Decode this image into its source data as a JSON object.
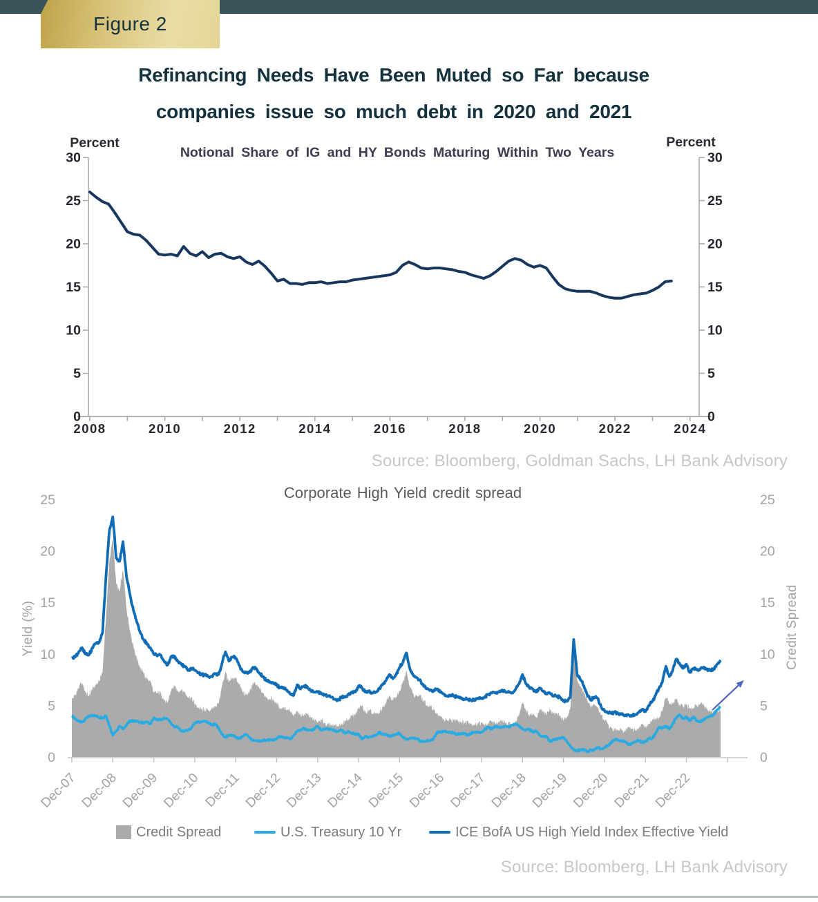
{
  "header": {
    "figure_label": "Figure 2",
    "title_line1": "Refinancing Needs Have Been Muted so Far because",
    "title_line2": "companies issue so much debt in 2020 and 2021",
    "bar_color": "#3a545b",
    "label_gold_dark": "#bfa349",
    "label_gold_light": "#e9dda6",
    "title_color": "#14323e"
  },
  "chart_data": [
    {
      "type": "line",
      "title": "Notional Share of IG and HY Bonds Maturing Within Two Years",
      "ylabel_left": "Percent",
      "ylabel_right": "Percent",
      "source": "Source: Bloomberg, Goldman Sachs, LH Bank Advisory",
      "ylim": [
        0,
        30
      ],
      "yticks": [
        0,
        5,
        10,
        15,
        20,
        25,
        30
      ],
      "xtick_years_labeled": [
        2008,
        2010,
        2012,
        2014,
        2016,
        2018,
        2020,
        2022,
        2024
      ],
      "xtick_minor_start": 2008,
      "xtick_minor_end": 2024,
      "grid": "off",
      "series": [
        {
          "name": "Share of IG and HY bonds maturing within two years",
          "color": "#17375e",
          "x_start": 2008.0,
          "x_step": 0.1666667,
          "values": [
            26.0,
            25.4,
            24.9,
            24.6,
            23.6,
            22.5,
            21.4,
            21.1,
            21.0,
            20.4,
            19.6,
            18.8,
            18.7,
            18.8,
            18.6,
            19.7,
            18.9,
            18.6,
            19.1,
            18.4,
            18.8,
            18.9,
            18.5,
            18.3,
            18.5,
            17.9,
            17.6,
            18.0,
            17.4,
            16.6,
            15.7,
            15.9,
            15.4,
            15.4,
            15.3,
            15.5,
            15.5,
            15.6,
            15.4,
            15.5,
            15.6,
            15.6,
            15.8,
            15.9,
            16.0,
            16.1,
            16.2,
            16.3,
            16.4,
            16.7,
            17.5,
            17.9,
            17.6,
            17.2,
            17.1,
            17.2,
            17.2,
            17.1,
            17.0,
            16.8,
            16.7,
            16.4,
            16.2,
            16.0,
            16.3,
            16.8,
            17.4,
            18.0,
            18.3,
            18.1,
            17.6,
            17.3,
            17.5,
            17.2,
            16.2,
            15.3,
            14.8,
            14.6,
            14.5,
            14.5,
            14.5,
            14.3,
            14.0,
            13.8,
            13.7,
            13.7,
            13.9,
            14.1,
            14.2,
            14.3,
            14.6,
            15.0,
            15.6,
            15.7
          ]
        }
      ]
    },
    {
      "type": "area+line",
      "title": "Corporate High Yield credit spread",
      "ylabel_left": "Yield (%)",
      "ylabel_right": "Credit Spread",
      "source": "Source: Bloomberg, LH Bank Advisory",
      "ylim": [
        0,
        25
      ],
      "yticks": [
        0,
        5,
        10,
        15,
        20,
        25
      ],
      "grid": "off",
      "legend_position": "bottom",
      "x_start": 2007.9167,
      "x_step": 0.0833333,
      "xtick_labels": [
        "Dec-07",
        "Dec-08",
        "Dec-09",
        "Dec-10",
        "Dec-11",
        "Dec-12",
        "Dec-13",
        "Dec-14",
        "Dec-15",
        "Dec-16",
        "Dec-17",
        "Dec-18",
        "Dec-19",
        "Dec-20",
        "Dec-21",
        "Dec-22"
      ],
      "series": [
        {
          "name": "Credit Spread",
          "type": "area",
          "color": "#ababab",
          "values": [
            5.6,
            6.0,
            6.7,
            7.2,
            6.3,
            5.9,
            6.6,
            7.0,
            7.3,
            8.3,
            13.5,
            19.0,
            21.2,
            16.8,
            16.0,
            18.2,
            14.4,
            12.3,
            10.8,
            9.6,
            8.7,
            8.1,
            7.6,
            7.4,
            6.2,
            6.2,
            6.3,
            5.5,
            5.2,
            6.4,
            6.9,
            6.4,
            6.5,
            6.3,
            5.8,
            5.8,
            5.1,
            4.8,
            4.6,
            4.5,
            4.5,
            4.7,
            4.9,
            5.2,
            6.9,
            8.3,
            7.2,
            7.6,
            7.7,
            7.1,
            6.3,
            6.0,
            6.3,
            7.1,
            7.0,
            6.6,
            6.2,
            5.8,
            5.6,
            5.6,
            5.2,
            4.7,
            4.8,
            4.6,
            4.4,
            3.9,
            4.5,
            4.0,
            4.1,
            4.2,
            3.8,
            3.6,
            3.3,
            3.6,
            3.3,
            3.2,
            3.1,
            3.1,
            3.0,
            3.2,
            3.5,
            3.6,
            4.0,
            4.1,
            4.7,
            5.0,
            4.3,
            4.5,
            4.2,
            4.2,
            4.2,
            4.8,
            5.2,
            6.0,
            5.5,
            5.8,
            6.4,
            7.3,
            8.4,
            6.8,
            6.1,
            5.9,
            6.0,
            5.4,
            5.0,
            4.9,
            4.6,
            4.2,
            3.9,
            3.6,
            3.5,
            3.6,
            3.6,
            3.6,
            3.4,
            3.3,
            3.5,
            3.2,
            3.1,
            3.3,
            3.3,
            3.1,
            3.2,
            3.5,
            3.2,
            3.4,
            3.6,
            3.3,
            3.4,
            3.1,
            3.4,
            4.1,
            5.3,
            4.5,
            4.0,
            4.2,
            3.8,
            4.6,
            4.4,
            4.1,
            4.7,
            4.2,
            4.2,
            4.0,
            3.5,
            3.9,
            4.7,
            10.7,
            7.4,
            6.8,
            6.2,
            5.5,
            4.8,
            5.1,
            4.8,
            4.1,
            3.6,
            3.2,
            2.8,
            2.7,
            2.6,
            2.6,
            2.5,
            2.9,
            2.7,
            2.6,
            2.7,
            3.2,
            2.9,
            3.2,
            3.6,
            3.7,
            3.8,
            4.5,
            5.8,
            5.1,
            5.2,
            5.7,
            5.0,
            4.9,
            5.1,
            4.7,
            4.7,
            5.0,
            5.1,
            5.1,
            4.7,
            4.4,
            4.4,
            4.4,
            4.5
          ]
        },
        {
          "name": "U.S. Treasury 10 Yr",
          "type": "line",
          "color": "#29abe2",
          "values": [
            4.0,
            3.7,
            3.5,
            3.4,
            3.7,
            4.0,
            4.0,
            4.0,
            3.8,
            3.8,
            4.0,
            3.0,
            2.1,
            2.5,
            3.0,
            2.7,
            3.1,
            3.5,
            3.5,
            3.5,
            3.4,
            3.3,
            3.4,
            3.2,
            3.8,
            3.6,
            3.6,
            3.8,
            3.7,
            3.3,
            2.9,
            2.9,
            2.5,
            2.5,
            2.6,
            2.8,
            3.3,
            3.4,
            3.4,
            3.5,
            3.3,
            3.1,
            3.2,
            2.8,
            2.2,
            1.9,
            2.1,
            2.1,
            1.9,
            1.8,
            2.0,
            2.2,
            1.9,
            1.6,
            1.6,
            1.5,
            1.6,
            1.6,
            1.7,
            1.6,
            1.8,
            2.0,
            1.9,
            1.9,
            1.7,
            2.1,
            2.5,
            2.6,
            2.8,
            2.6,
            2.6,
            2.7,
            3.0,
            2.6,
            2.7,
            2.7,
            2.7,
            2.5,
            2.5,
            2.6,
            2.3,
            2.5,
            2.3,
            2.2,
            2.2,
            1.7,
            2.0,
            1.9,
            2.0,
            2.1,
            2.4,
            2.2,
            2.2,
            2.0,
            2.1,
            2.2,
            2.3,
            1.9,
            1.7,
            1.8,
            1.8,
            1.8,
            1.5,
            1.5,
            1.6,
            1.6,
            1.8,
            2.4,
            2.4,
            2.5,
            2.4,
            2.4,
            2.3,
            2.2,
            2.3,
            2.3,
            2.1,
            2.3,
            2.4,
            2.4,
            2.4,
            2.7,
            2.9,
            2.7,
            3.0,
            2.9,
            2.9,
            3.0,
            2.9,
            3.1,
            3.2,
            3.0,
            2.7,
            2.6,
            2.7,
            2.4,
            2.5,
            2.1,
            2.0,
            2.0,
            1.5,
            1.7,
            1.7,
            1.8,
            1.9,
            1.5,
            1.1,
            0.7,
            0.6,
            0.7,
            0.7,
            0.5,
            0.7,
            0.7,
            0.9,
            0.8,
            0.9,
            1.1,
            1.4,
            1.7,
            1.6,
            1.6,
            1.5,
            1.2,
            1.3,
            1.5,
            1.6,
            1.4,
            1.5,
            1.8,
            1.8,
            2.3,
            2.9,
            2.8,
            3.0,
            2.7,
            3.2,
            3.8,
            4.1,
            3.7,
            3.9,
            3.5,
            3.9,
            3.5,
            3.4,
            3.6,
            3.8,
            4.0,
            4.1,
            4.6,
            4.9
          ]
        },
        {
          "name": "ICE BofA US High Yield Index Effective Yield",
          "type": "line",
          "color": "#0f6cb5",
          "values": [
            9.6,
            9.7,
            10.2,
            10.6,
            10.0,
            9.9,
            10.6,
            11.0,
            11.1,
            12.1,
            17.5,
            22.0,
            23.3,
            19.3,
            19.0,
            20.9,
            17.5,
            15.8,
            14.3,
            13.1,
            12.1,
            11.4,
            11.0,
            10.6,
            10.0,
            9.8,
            9.9,
            9.3,
            8.9,
            9.7,
            9.8,
            9.3,
            9.0,
            8.8,
            8.4,
            8.6,
            8.4,
            8.2,
            8.0,
            8.0,
            7.8,
            7.8,
            8.1,
            8.0,
            9.1,
            10.2,
            9.3,
            9.7,
            9.6,
            8.9,
            8.3,
            8.2,
            8.2,
            8.7,
            8.6,
            8.1,
            7.8,
            7.4,
            7.3,
            7.2,
            7.0,
            6.7,
            6.7,
            6.5,
            6.1,
            6.0,
            7.0,
            6.6,
            6.9,
            6.8,
            6.4,
            6.3,
            6.3,
            6.2,
            6.0,
            5.9,
            5.8,
            5.6,
            5.5,
            5.8,
            5.8,
            6.1,
            6.3,
            6.3,
            6.9,
            6.7,
            6.3,
            6.4,
            6.2,
            6.3,
            6.6,
            7.0,
            7.4,
            8.0,
            7.6,
            8.0,
            8.7,
            9.2,
            10.1,
            8.6,
            7.9,
            7.7,
            7.5,
            6.9,
            6.6,
            6.5,
            6.4,
            6.6,
            6.3,
            6.1,
            5.9,
            6.0,
            5.9,
            5.8,
            5.7,
            5.6,
            5.6,
            5.5,
            5.5,
            5.7,
            5.7,
            5.8,
            6.1,
            6.2,
            6.2,
            6.3,
            6.5,
            6.3,
            6.3,
            6.2,
            6.6,
            7.1,
            8.0,
            7.1,
            6.7,
            6.6,
            6.3,
            6.7,
            6.4,
            6.1,
            6.2,
            5.9,
            5.9,
            5.8,
            5.4,
            5.4,
            5.8,
            11.4,
            8.0,
            7.5,
            6.9,
            6.0,
            5.5,
            5.8,
            5.7,
            4.9,
            4.5,
            4.3,
            4.2,
            4.4,
            4.2,
            4.2,
            4.0,
            4.1,
            4.0,
            4.1,
            4.3,
            4.6,
            4.4,
            5.0,
            5.4,
            6.0,
            6.7,
            7.3,
            8.8,
            7.8,
            8.4,
            9.5,
            9.1,
            8.6,
            9.0,
            8.2,
            8.6,
            8.5,
            8.5,
            8.7,
            8.5,
            8.4,
            8.5,
            9.0,
            9.4
          ]
        }
      ],
      "annotation_arrow": {
        "from": [
          2023.55,
          4.55
        ],
        "to": [
          2024.32,
          7.45
        ],
        "color": "#5064bd"
      }
    }
  ]
}
